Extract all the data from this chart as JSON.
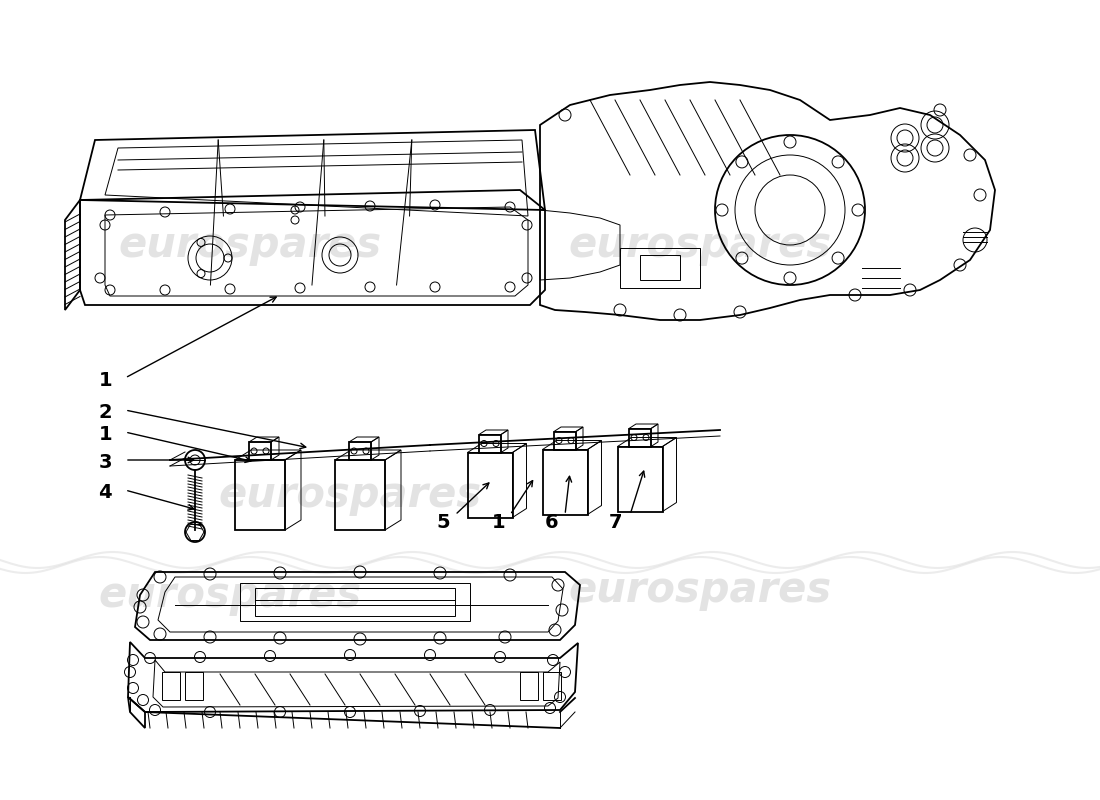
{
  "background_color": "#ffffff",
  "line_color": "#000000",
  "watermark_color": "#c8c8c8",
  "watermark_text": "eurospares",
  "figsize": [
    11.0,
    8.0
  ],
  "dpi": 100,
  "lw_main": 1.3,
  "lw_thin": 0.7,
  "lw_thick": 2.0
}
